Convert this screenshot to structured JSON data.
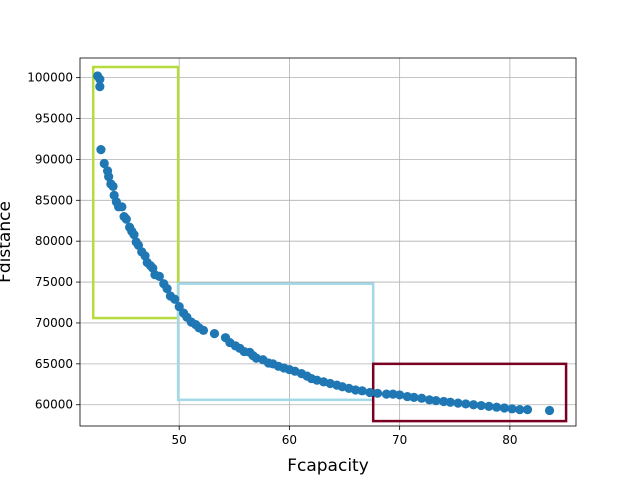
{
  "chart_data": {
    "type": "scatter",
    "title": "",
    "xlabel": "Fcapacity",
    "ylabel": "Fdistance",
    "xlim": [
      41,
      86
    ],
    "ylim": [
      57400,
      102400
    ],
    "xticks": [
      50,
      60,
      70,
      80
    ],
    "xtick_labels": [
      "50",
      "60",
      "70",
      "80"
    ],
    "yticks": [
      60000,
      65000,
      70000,
      75000,
      80000,
      85000,
      90000,
      95000,
      100000
    ],
    "ytick_labels": [
      "60000",
      "65000",
      "70000",
      "75000",
      "80000",
      "85000",
      "90000",
      "95000",
      "100000"
    ],
    "grid": true,
    "legend": "none",
    "point_color": "#1f77b4",
    "series": [
      {
        "points": [
          [
            42.6,
            100200
          ],
          [
            42.8,
            99800
          ],
          [
            42.8,
            98900
          ],
          [
            42.9,
            91200
          ],
          [
            43.2,
            89500
          ],
          [
            43.5,
            88600
          ],
          [
            43.6,
            87900
          ],
          [
            43.8,
            87000
          ],
          [
            44.0,
            86700
          ],
          [
            44.1,
            85600
          ],
          [
            44.3,
            84800
          ],
          [
            44.5,
            84200
          ],
          [
            44.8,
            84200
          ],
          [
            45.0,
            83000
          ],
          [
            45.2,
            82700
          ],
          [
            45.5,
            81700
          ],
          [
            45.7,
            81200
          ],
          [
            45.9,
            80800
          ],
          [
            46.1,
            79900
          ],
          [
            46.3,
            79500
          ],
          [
            46.6,
            78700
          ],
          [
            46.9,
            78200
          ],
          [
            47.1,
            77400
          ],
          [
            47.4,
            77000
          ],
          [
            47.6,
            76700
          ],
          [
            47.8,
            75900
          ],
          [
            48.2,
            75700
          ],
          [
            48.6,
            74800
          ],
          [
            48.9,
            74200
          ],
          [
            49.2,
            73300
          ],
          [
            49.6,
            72900
          ],
          [
            50.0,
            72000
          ],
          [
            50.4,
            71200
          ],
          [
            50.7,
            70700
          ],
          [
            51.1,
            70100
          ],
          [
            51.5,
            69800
          ],
          [
            51.8,
            69400
          ],
          [
            52.2,
            69100
          ],
          [
            53.2,
            68700
          ],
          [
            54.2,
            68200
          ],
          [
            54.6,
            67600
          ],
          [
            55.1,
            67200
          ],
          [
            55.5,
            66900
          ],
          [
            55.9,
            66500
          ],
          [
            56.4,
            66400
          ],
          [
            56.7,
            66000
          ],
          [
            57.0,
            65700
          ],
          [
            57.6,
            65500
          ],
          [
            58.1,
            65100
          ],
          [
            58.5,
            65000
          ],
          [
            59.0,
            64700
          ],
          [
            59.5,
            64500
          ],
          [
            60.0,
            64300
          ],
          [
            60.5,
            64100
          ],
          [
            61.1,
            63800
          ],
          [
            61.6,
            63500
          ],
          [
            62.0,
            63200
          ],
          [
            62.5,
            63000
          ],
          [
            63.1,
            62800
          ],
          [
            63.7,
            62600
          ],
          [
            64.3,
            62400
          ],
          [
            64.8,
            62200
          ],
          [
            65.4,
            62000
          ],
          [
            66.0,
            61800
          ],
          [
            66.6,
            61700
          ],
          [
            67.3,
            61500
          ],
          [
            68.0,
            61400
          ],
          [
            68.8,
            61300
          ],
          [
            69.4,
            61300
          ],
          [
            70.0,
            61200
          ],
          [
            70.7,
            61000
          ],
          [
            71.3,
            60900
          ],
          [
            72.0,
            60800
          ],
          [
            72.7,
            60600
          ],
          [
            73.3,
            60500
          ],
          [
            74.0,
            60400
          ],
          [
            74.6,
            60300
          ],
          [
            75.3,
            60200
          ],
          [
            76.0,
            60100
          ],
          [
            76.7,
            60000
          ],
          [
            77.4,
            59900
          ],
          [
            78.1,
            59800
          ],
          [
            78.8,
            59700
          ],
          [
            79.5,
            59600
          ],
          [
            80.2,
            59500
          ],
          [
            80.9,
            59400
          ],
          [
            81.6,
            59400
          ],
          [
            83.6,
            59300
          ]
        ]
      }
    ],
    "regions": [
      {
        "x": [
          42.2,
          49.9
        ],
        "y": [
          70600,
          101300
        ],
        "color": "#b5dc3c"
      },
      {
        "x": [
          49.9,
          67.6
        ],
        "y": [
          60600,
          74800
        ],
        "color": "#a3d9e7"
      },
      {
        "x": [
          67.6,
          85.1
        ],
        "y": [
          58000,
          65000
        ],
        "color": "#7a0022"
      }
    ]
  }
}
